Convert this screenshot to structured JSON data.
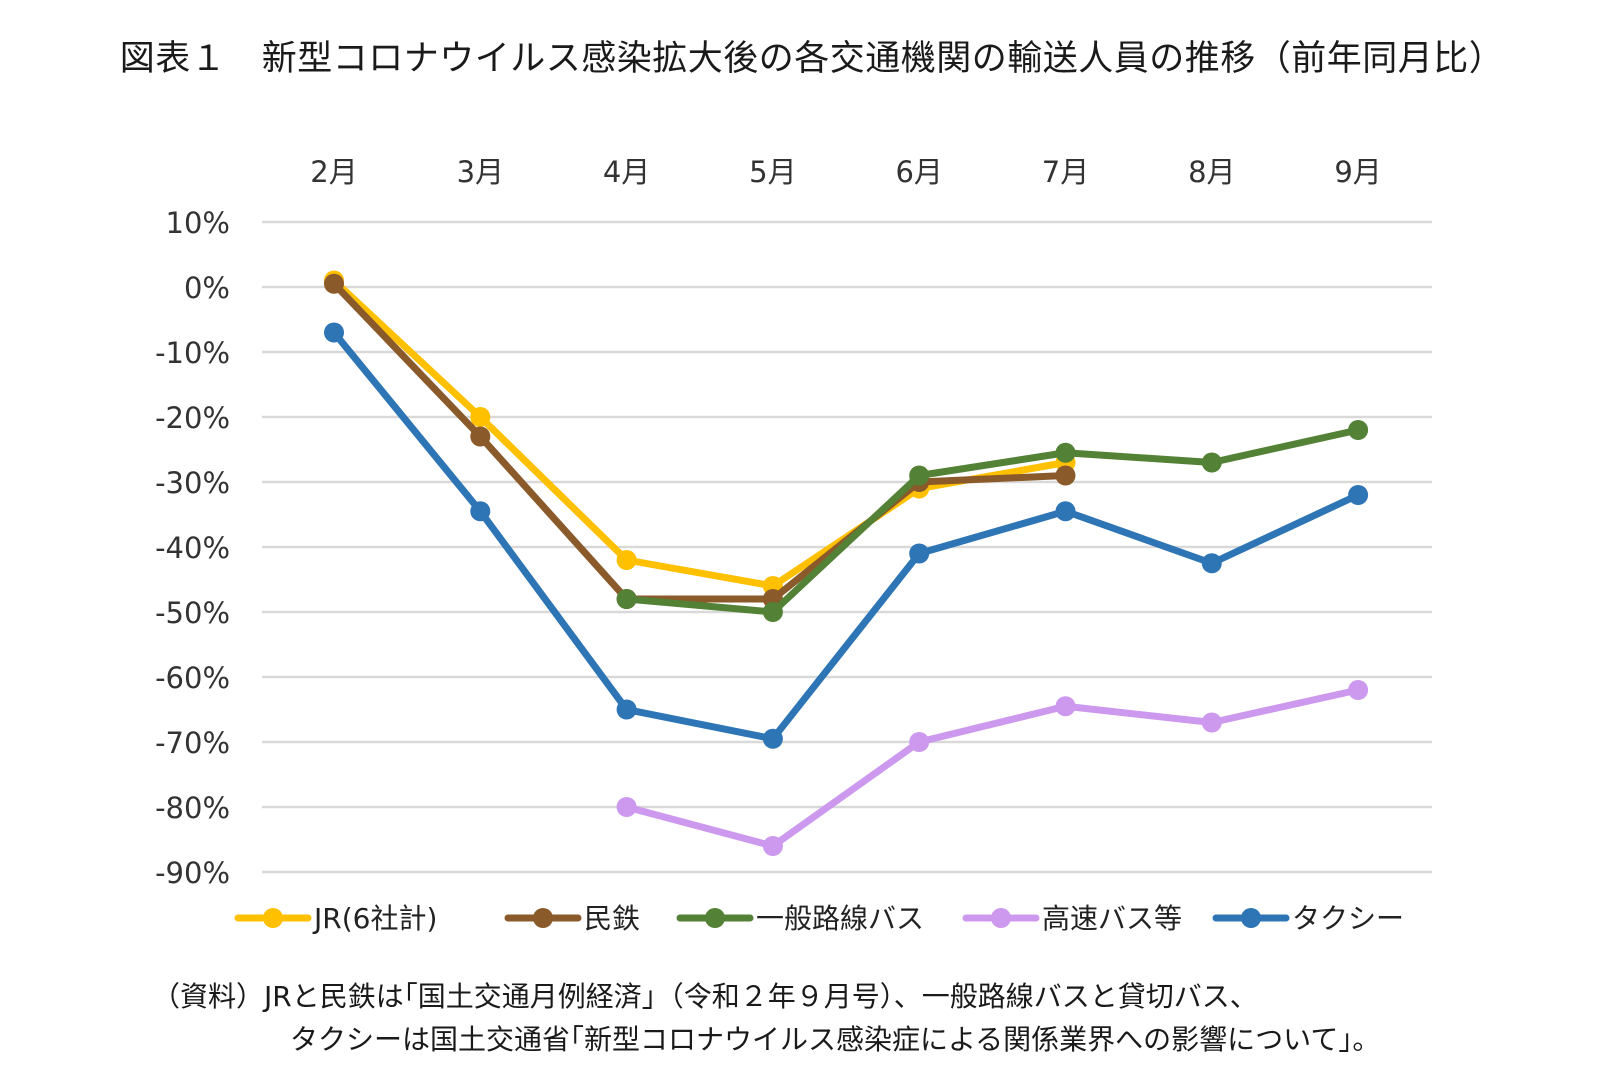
{
  "chart_data": {
    "type": "line",
    "title": "図表１　新型コロナウイルス感染拡大後の各交通機関の輸送人員の推移（前年同月比）",
    "categories": [
      "2月",
      "3月",
      "4月",
      "5月",
      "6月",
      "7月",
      "8月",
      "9月"
    ],
    "y_tick_labels": [
      "10%",
      "0%",
      "-10%",
      "-20%",
      "-30%",
      "-40%",
      "-50%",
      "-60%",
      "-70%",
      "-80%",
      "-90%"
    ],
    "ylim": [
      -90,
      10
    ],
    "x_axis_position": "top",
    "grid": true,
    "legend_position": "bottom",
    "series": [
      {
        "name": "JR(6社計)",
        "color": "#FFC000",
        "values": [
          1,
          -20,
          -42,
          -46,
          -31,
          -27,
          null,
          null
        ]
      },
      {
        "name": "民鉄",
        "color": "#8B5A2B",
        "values": [
          0.5,
          -23,
          -48,
          -48,
          -30,
          -29,
          null,
          null
        ]
      },
      {
        "name": "一般路線バス",
        "color": "#538135",
        "values": [
          null,
          null,
          -48,
          -50,
          -29,
          -25.5,
          -27,
          -22
        ]
      },
      {
        "name": "高速バス等",
        "color": "#CC99EE",
        "values": [
          null,
          null,
          -80,
          -86,
          -70,
          -64.5,
          -67,
          -62
        ]
      },
      {
        "name": "タクシー",
        "color": "#2E75B6",
        "values": [
          -7,
          -34.5,
          -65,
          -69.5,
          -41,
          -34.5,
          -42.5,
          -32
        ]
      }
    ]
  },
  "notes": {
    "line1": "（資料）JRと民鉄は｢国土交通月例経済｣（令和２年９月号）、一般路線バスと貸切バス、",
    "line2": "タクシーは国土交通省｢新型コロナウイルス感染症による関係業界への影響について｣。"
  }
}
